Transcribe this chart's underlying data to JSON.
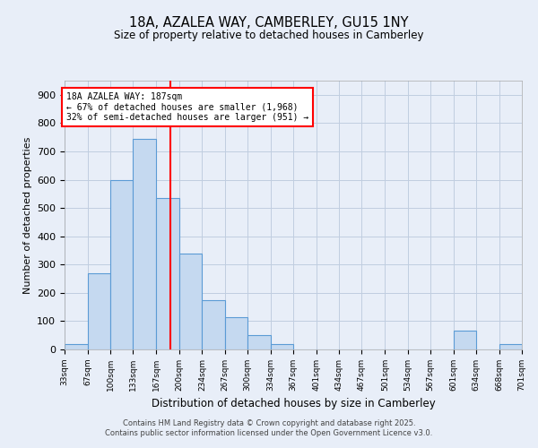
{
  "title1": "18A, AZALEA WAY, CAMBERLEY, GU15 1NY",
  "title2": "Size of property relative to detached houses in Camberley",
  "xlabel": "Distribution of detached houses by size in Camberley",
  "ylabel": "Number of detached properties",
  "bin_edges": [
    33,
    67,
    100,
    133,
    167,
    200,
    234,
    267,
    300,
    334,
    367,
    401,
    434,
    467,
    501,
    534,
    567,
    601,
    634,
    668,
    701
  ],
  "bar_heights": [
    20,
    270,
    600,
    745,
    535,
    340,
    175,
    115,
    50,
    20,
    0,
    0,
    0,
    0,
    0,
    0,
    0,
    65,
    0,
    20
  ],
  "bar_color": "#c5d9f0",
  "bar_edge_color": "#5b9bd5",
  "reference_line_x": 187,
  "reference_line_color": "red",
  "annotation_text": "18A AZALEA WAY: 187sqm\n← 67% of detached houses are smaller (1,968)\n32% of semi-detached houses are larger (951) →",
  "annotation_box_color": "white",
  "annotation_box_edge": "red",
  "ylim": [
    0,
    950
  ],
  "yticks": [
    0,
    100,
    200,
    300,
    400,
    500,
    600,
    700,
    800,
    900
  ],
  "footer1": "Contains HM Land Registry data © Crown copyright and database right 2025.",
  "footer2": "Contains public sector information licensed under the Open Government Licence v3.0.",
  "bg_color": "#e8eef8",
  "grid_color": "#c0cde0"
}
